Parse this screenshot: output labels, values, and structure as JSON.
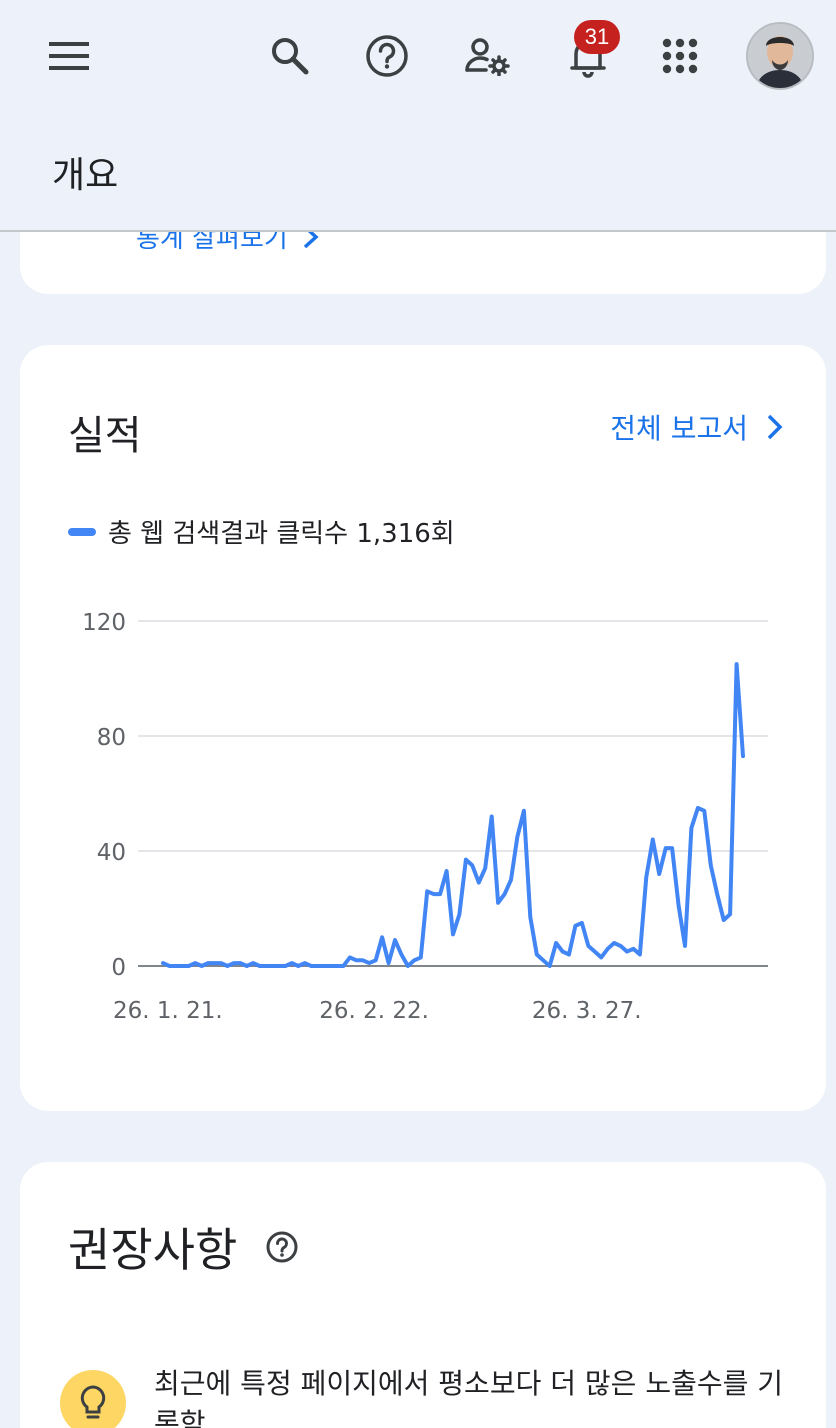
{
  "header": {
    "page_title": "개요",
    "notification_count": "31",
    "icons": [
      "menu-icon",
      "search-icon",
      "help-icon",
      "user-settings-icon",
      "bell-icon",
      "apps-icon"
    ]
  },
  "top_card": {
    "link_label": "통계 살펴보기"
  },
  "performance": {
    "title": "실적",
    "report_link": "전체 보고서",
    "legend_label": "총 웹 검색결과 클릭수 1,316회"
  },
  "chart_data": {
    "type": "line",
    "title": "",
    "xlabel": "",
    "ylabel": "",
    "ylim": [
      0,
      120
    ],
    "yticks": [
      0,
      40,
      80,
      120
    ],
    "x_tick_labels": [
      "26. 1. 21.",
      "26. 2. 22.",
      "26. 3. 27."
    ],
    "x_tick_index": [
      0,
      32,
      65
    ],
    "color": "#4285f4",
    "grid": true,
    "series": [
      {
        "values": [
          1,
          0,
          0,
          0,
          0,
          1,
          0,
          1,
          1,
          1,
          0,
          1,
          1,
          0,
          1,
          0,
          0,
          0,
          0,
          0,
          1,
          0,
          1,
          0,
          0,
          0,
          0,
          0,
          0,
          3,
          2,
          2,
          1,
          2,
          10,
          1,
          9,
          4,
          0,
          2,
          3,
          26,
          25,
          25,
          33,
          11,
          18,
          37,
          35,
          29,
          34,
          52,
          22,
          25,
          30,
          45,
          54,
          17,
          4,
          2,
          0,
          8,
          5,
          4,
          14,
          15,
          7,
          5,
          3,
          6,
          8,
          7,
          5,
          6,
          4,
          31,
          44,
          32,
          41,
          41,
          21,
          7,
          48,
          55,
          54,
          35,
          25,
          16,
          18,
          105,
          73
        ]
      }
    ]
  },
  "recommendations": {
    "title": "권장사항",
    "item_text": "최근에 특정 페이지에서 평소보다 더 많은 노출수를 기록함"
  }
}
